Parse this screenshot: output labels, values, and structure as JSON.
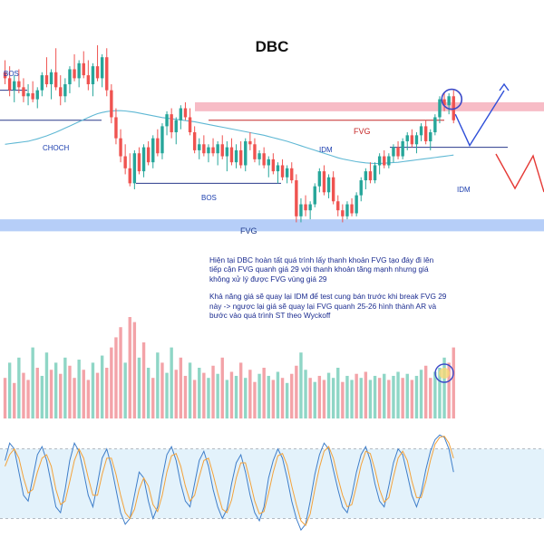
{
  "title": "DBC",
  "labels": {
    "bos_left": "BOS",
    "choch": "CHOCH",
    "bos_mid": "BOS",
    "idm_mid": "IDM",
    "idm_right": "IDM",
    "fvg_top": "FVG",
    "fvg_bottom": "FVG"
  },
  "annotation": {
    "para1": "Hiện tại DBC hoàn tất quá trình lấy thanh khoản FVG tạo đáy đi lên tiếp cận FVG quanh giá 29 với thanh khoản tăng mạnh nhưng giá không xử lý được FVG vùng giá 29",
    "para2": "Khả năng giá sẽ quay lại IDM để test cung bán trước khi break FVG 29 này -> ngược lại giá sẽ quay lại FVG quanh 25-26 hình thành AR và bước vào quá trình ST theo Wyckoff"
  },
  "colors": {
    "up": "#26a69a",
    "down": "#ef5350",
    "fvg_top_zone": "#f4a5b3",
    "fvg_bottom_zone": "#a9c6f7",
    "ma_line": "#5fb8d4",
    "label_blue": "#1e40af",
    "projection_blue": "#2f4fd8",
    "projection_red": "#e53935",
    "highlight_circle": "#3b49c8",
    "stoch_band": "#e3f2fb",
    "stoch_k": "#3f7ec9",
    "stoch_d": "#f3a23a"
  },
  "chart_data": [
    {
      "type": "candlestick",
      "title": "DBC",
      "y_range": [
        24.5,
        31.2
      ],
      "candles": [
        {
          "o": 30.0,
          "h": 30.4,
          "l": 29.6,
          "c": 29.8
        },
        {
          "o": 29.8,
          "h": 30.2,
          "l": 29.2,
          "c": 29.4
        },
        {
          "o": 29.4,
          "h": 29.9,
          "l": 29.0,
          "c": 29.7
        },
        {
          "o": 29.7,
          "h": 30.1,
          "l": 29.3,
          "c": 29.5
        },
        {
          "o": 29.5,
          "h": 29.8,
          "l": 29.0,
          "c": 29.2
        },
        {
          "o": 29.2,
          "h": 29.6,
          "l": 28.9,
          "c": 29.3
        },
        {
          "o": 29.3,
          "h": 29.7,
          "l": 29.0,
          "c": 29.1
        },
        {
          "o": 29.1,
          "h": 29.5,
          "l": 28.8,
          "c": 29.4
        },
        {
          "o": 29.4,
          "h": 30.0,
          "l": 29.2,
          "c": 29.9
        },
        {
          "o": 29.9,
          "h": 30.5,
          "l": 29.5,
          "c": 29.6
        },
        {
          "o": 29.6,
          "h": 30.1,
          "l": 29.1,
          "c": 30.0
        },
        {
          "o": 30.0,
          "h": 30.8,
          "l": 29.4,
          "c": 29.5
        },
        {
          "o": 29.5,
          "h": 29.9,
          "l": 28.9,
          "c": 29.2
        },
        {
          "o": 29.2,
          "h": 29.8,
          "l": 29.0,
          "c": 29.6
        },
        {
          "o": 29.6,
          "h": 30.2,
          "l": 29.3,
          "c": 30.1
        },
        {
          "o": 30.1,
          "h": 30.6,
          "l": 29.7,
          "c": 29.8
        },
        {
          "o": 29.8,
          "h": 30.4,
          "l": 29.5,
          "c": 30.3
        },
        {
          "o": 30.3,
          "h": 30.7,
          "l": 29.8,
          "c": 29.9
        },
        {
          "o": 29.9,
          "h": 30.4,
          "l": 29.4,
          "c": 29.6
        },
        {
          "o": 29.6,
          "h": 30.3,
          "l": 29.2,
          "c": 30.2
        },
        {
          "o": 30.2,
          "h": 30.9,
          "l": 29.7,
          "c": 29.8
        },
        {
          "o": 29.8,
          "h": 30.6,
          "l": 29.5,
          "c": 30.5
        },
        {
          "o": 30.5,
          "h": 30.8,
          "l": 29.2,
          "c": 29.4
        },
        {
          "o": 29.4,
          "h": 29.6,
          "l": 28.3,
          "c": 28.5
        },
        {
          "o": 28.5,
          "h": 28.8,
          "l": 27.6,
          "c": 27.8
        },
        {
          "o": 27.8,
          "h": 28.1,
          "l": 27.0,
          "c": 27.2
        },
        {
          "o": 27.2,
          "h": 27.6,
          "l": 26.6,
          "c": 26.8
        },
        {
          "o": 26.8,
          "h": 27.3,
          "l": 26.2,
          "c": 26.3
        },
        {
          "o": 26.3,
          "h": 27.4,
          "l": 26.1,
          "c": 27.3
        },
        {
          "o": 27.3,
          "h": 27.5,
          "l": 26.6,
          "c": 26.7
        },
        {
          "o": 26.7,
          "h": 27.6,
          "l": 26.5,
          "c": 27.5
        },
        {
          "o": 27.5,
          "h": 27.7,
          "l": 26.9,
          "c": 27.0
        },
        {
          "o": 27.0,
          "h": 27.9,
          "l": 26.8,
          "c": 27.8
        },
        {
          "o": 27.8,
          "h": 28.1,
          "l": 27.2,
          "c": 27.3
        },
        {
          "o": 27.3,
          "h": 28.3,
          "l": 27.1,
          "c": 28.2
        },
        {
          "o": 28.2,
          "h": 28.7,
          "l": 27.9,
          "c": 28.6
        },
        {
          "o": 28.6,
          "h": 28.8,
          "l": 27.8,
          "c": 28.0
        },
        {
          "o": 28.0,
          "h": 28.5,
          "l": 27.6,
          "c": 28.4
        },
        {
          "o": 28.4,
          "h": 28.9,
          "l": 28.1,
          "c": 28.8
        },
        {
          "o": 28.8,
          "h": 29.0,
          "l": 28.4,
          "c": 28.5
        },
        {
          "o": 28.5,
          "h": 28.8,
          "l": 27.9,
          "c": 28.0
        },
        {
          "o": 28.0,
          "h": 28.2,
          "l": 27.3,
          "c": 27.4
        },
        {
          "o": 27.4,
          "h": 27.8,
          "l": 27.1,
          "c": 27.6
        },
        {
          "o": 27.6,
          "h": 27.9,
          "l": 27.2,
          "c": 27.3
        },
        {
          "o": 27.3,
          "h": 27.6,
          "l": 27.0,
          "c": 27.5
        },
        {
          "o": 27.5,
          "h": 27.8,
          "l": 27.2,
          "c": 27.3
        },
        {
          "o": 27.3,
          "h": 27.7,
          "l": 26.9,
          "c": 27.6
        },
        {
          "o": 27.6,
          "h": 27.9,
          "l": 27.1,
          "c": 27.2
        },
        {
          "o": 27.2,
          "h": 27.7,
          "l": 26.7,
          "c": 27.5
        },
        {
          "o": 27.5,
          "h": 27.8,
          "l": 26.9,
          "c": 27.0
        },
        {
          "o": 27.0,
          "h": 27.6,
          "l": 26.8,
          "c": 27.4
        },
        {
          "o": 27.4,
          "h": 27.7,
          "l": 26.8,
          "c": 26.9
        },
        {
          "o": 26.9,
          "h": 27.8,
          "l": 26.7,
          "c": 27.7
        },
        {
          "o": 27.7,
          "h": 28.0,
          "l": 27.4,
          "c": 27.6
        },
        {
          "o": 27.6,
          "h": 27.8,
          "l": 27.0,
          "c": 27.1
        },
        {
          "o": 27.1,
          "h": 27.4,
          "l": 26.9,
          "c": 27.3
        },
        {
          "o": 27.3,
          "h": 27.5,
          "l": 26.8,
          "c": 26.9
        },
        {
          "o": 26.9,
          "h": 27.2,
          "l": 26.5,
          "c": 27.1
        },
        {
          "o": 27.1,
          "h": 27.3,
          "l": 26.6,
          "c": 26.7
        },
        {
          "o": 26.7,
          "h": 27.0,
          "l": 26.3,
          "c": 26.9
        },
        {
          "o": 26.9,
          "h": 27.1,
          "l": 26.4,
          "c": 26.5
        },
        {
          "o": 26.5,
          "h": 26.9,
          "l": 26.3,
          "c": 26.8
        },
        {
          "o": 26.8,
          "h": 27.0,
          "l": 26.3,
          "c": 26.4
        },
        {
          "o": 26.4,
          "h": 26.6,
          "l": 25.0,
          "c": 25.2
        },
        {
          "o": 25.2,
          "h": 25.8,
          "l": 25.0,
          "c": 25.6
        },
        {
          "o": 25.6,
          "h": 25.9,
          "l": 25.2,
          "c": 25.4
        },
        {
          "o": 25.4,
          "h": 25.7,
          "l": 25.1,
          "c": 25.6
        },
        {
          "o": 25.6,
          "h": 26.3,
          "l": 25.5,
          "c": 26.2
        },
        {
          "o": 26.2,
          "h": 26.8,
          "l": 26.0,
          "c": 26.7
        },
        {
          "o": 26.7,
          "h": 26.9,
          "l": 25.9,
          "c": 26.0
        },
        {
          "o": 26.0,
          "h": 26.6,
          "l": 25.8,
          "c": 26.5
        },
        {
          "o": 26.5,
          "h": 26.7,
          "l": 25.6,
          "c": 25.7
        },
        {
          "o": 25.7,
          "h": 25.9,
          "l": 25.2,
          "c": 25.4
        },
        {
          "o": 25.4,
          "h": 25.6,
          "l": 25.0,
          "c": 25.2
        },
        {
          "o": 25.2,
          "h": 25.7,
          "l": 25.1,
          "c": 25.6
        },
        {
          "o": 25.6,
          "h": 25.8,
          "l": 25.2,
          "c": 25.3
        },
        {
          "o": 25.3,
          "h": 26.0,
          "l": 25.2,
          "c": 25.9
        },
        {
          "o": 25.9,
          "h": 26.5,
          "l": 25.7,
          "c": 26.4
        },
        {
          "o": 26.4,
          "h": 26.8,
          "l": 26.1,
          "c": 26.7
        },
        {
          "o": 26.7,
          "h": 27.0,
          "l": 26.3,
          "c": 26.4
        },
        {
          "o": 26.4,
          "h": 27.0,
          "l": 26.3,
          "c": 26.9
        },
        {
          "o": 26.9,
          "h": 27.3,
          "l": 26.6,
          "c": 27.2
        },
        {
          "o": 27.2,
          "h": 27.4,
          "l": 26.8,
          "c": 26.9
        },
        {
          "o": 26.9,
          "h": 27.3,
          "l": 26.8,
          "c": 27.2
        },
        {
          "o": 27.2,
          "h": 27.6,
          "l": 27.0,
          "c": 27.5
        },
        {
          "o": 27.5,
          "h": 27.7,
          "l": 27.1,
          "c": 27.2
        },
        {
          "o": 27.2,
          "h": 27.8,
          "l": 27.1,
          "c": 27.7
        },
        {
          "o": 27.7,
          "h": 28.0,
          "l": 27.4,
          "c": 27.9
        },
        {
          "o": 27.9,
          "h": 28.1,
          "l": 27.5,
          "c": 27.6
        },
        {
          "o": 27.6,
          "h": 28.0,
          "l": 27.3,
          "c": 27.9
        },
        {
          "o": 27.9,
          "h": 28.3,
          "l": 27.7,
          "c": 28.2
        },
        {
          "o": 28.2,
          "h": 28.4,
          "l": 27.6,
          "c": 27.7
        },
        {
          "o": 27.7,
          "h": 28.1,
          "l": 27.4,
          "c": 28.0
        },
        {
          "o": 28.0,
          "h": 28.6,
          "l": 27.9,
          "c": 28.5
        },
        {
          "o": 28.5,
          "h": 29.2,
          "l": 28.3,
          "c": 29.1
        },
        {
          "o": 29.1,
          "h": 29.3,
          "l": 28.7,
          "c": 28.9
        },
        {
          "o": 28.9,
          "h": 29.3,
          "l": 28.6,
          "c": 29.2
        },
        {
          "o": 29.2,
          "h": 29.4,
          "l": 28.3,
          "c": 28.4
        }
      ],
      "moving_average": [
        27.6,
        27.62,
        27.64,
        27.66,
        27.68,
        27.7,
        27.74,
        27.78,
        27.83,
        27.88,
        27.94,
        28.0,
        28.07,
        28.14,
        28.21,
        28.28,
        28.35,
        28.42,
        28.49,
        28.56,
        28.62,
        28.66,
        28.69,
        28.71,
        28.72,
        28.72,
        28.71,
        28.69,
        28.67,
        28.64,
        28.61,
        28.58,
        28.55,
        28.52,
        28.49,
        28.47,
        28.45,
        28.43,
        28.41,
        28.39,
        28.37,
        28.35,
        28.32,
        28.29,
        28.26,
        28.23,
        28.2,
        28.17,
        28.14,
        28.11,
        28.08,
        28.05,
        28.02,
        27.99,
        27.96,
        27.93,
        27.9,
        27.86,
        27.82,
        27.78,
        27.74,
        27.7,
        27.65,
        27.6,
        27.55,
        27.5,
        27.45,
        27.4,
        27.35,
        27.3,
        27.25,
        27.2,
        27.15,
        27.11,
        27.08,
        27.05,
        27.02,
        27.0,
        26.98,
        26.97,
        26.96,
        26.96,
        26.97,
        26.98,
        26.99,
        27.0,
        27.02,
        27.04,
        27.06,
        27.08,
        27.1,
        27.12,
        27.14,
        27.16,
        27.18,
        27.2,
        27.22,
        27.24
      ],
      "levels": [
        {
          "label": "BOS",
          "price": 29.4
        },
        {
          "label": "CHOCH",
          "price": 28.4
        },
        {
          "label": "BOS",
          "price": 26.3
        },
        {
          "label": "IDM",
          "price": 28.4
        },
        {
          "label": "IDM",
          "price": 27.5
        }
      ],
      "zones": [
        {
          "label": "FVG",
          "from": 28.7,
          "to": 29.0
        },
        {
          "label": "FVG",
          "from": 24.7,
          "to": 25.1
        }
      ]
    },
    {
      "type": "bar",
      "title": "Volume",
      "values": [
        40,
        55,
        35,
        60,
        45,
        38,
        70,
        50,
        42,
        65,
        48,
        55,
        44,
        60,
        52,
        40,
        58,
        48,
        38,
        55,
        45,
        62,
        50,
        70,
        80,
        90,
        55,
        100,
        95,
        60,
        75,
        50,
        40,
        65,
        55,
        45,
        70,
        48,
        60,
        42,
        55,
        38,
        50,
        45,
        40,
        52,
        44,
        60,
        38,
        46,
        42,
        55,
        40,
        48,
        36,
        44,
        50,
        42,
        38,
        46,
        40,
        35,
        44,
        52,
        65,
        48,
        40,
        36,
        42,
        38,
        45,
        40,
        50,
        36,
        42,
        38,
        44,
        40,
        46,
        38,
        42,
        40,
        44,
        38,
        42,
        46,
        40,
        44,
        38,
        42,
        48,
        52,
        40,
        46,
        50,
        60,
        55,
        70
      ],
      "directions": [
        "down",
        "up",
        "down",
        "up",
        "down",
        "down",
        "up",
        "down",
        "up",
        "up",
        "down",
        "up",
        "down",
        "up",
        "down",
        "down",
        "up",
        "down",
        "down",
        "up",
        "down",
        "up",
        "down",
        "down",
        "down",
        "down",
        "up",
        "down",
        "down",
        "up",
        "down",
        "up",
        "down",
        "up",
        "down",
        "up",
        "up",
        "down",
        "down",
        "down",
        "up",
        "down",
        "up",
        "down",
        "up",
        "down",
        "up",
        "down",
        "up",
        "down",
        "up",
        "down",
        "up",
        "down",
        "down",
        "up",
        "down",
        "up",
        "down",
        "up",
        "down",
        "up",
        "down",
        "down",
        "up",
        "up",
        "down",
        "up",
        "down",
        "down",
        "up",
        "up",
        "up",
        "down",
        "up",
        "up",
        "down",
        "up",
        "down",
        "up",
        "up",
        "down",
        "up",
        "down",
        "up",
        "up",
        "down",
        "up",
        "down",
        "up",
        "up",
        "down",
        "down",
        "up",
        "up",
        "up",
        "down",
        "down"
      ]
    },
    {
      "type": "line",
      "title": "Stochastic",
      "ylim": [
        0,
        100
      ],
      "band": [
        20,
        80
      ],
      "series": [
        {
          "values": [
            70,
            85,
            80,
            60,
            40,
            35,
            55,
            75,
            82,
            70,
            50,
            30,
            25,
            45,
            70,
            85,
            78,
            60,
            40,
            30,
            50,
            72,
            80,
            65,
            45,
            25,
            15,
            20,
            40,
            60,
            55,
            35,
            20,
            30,
            55,
            75,
            82,
            70,
            50,
            35,
            30,
            50,
            70,
            78,
            65,
            45,
            30,
            20,
            28,
            50,
            68,
            75,
            60,
            40,
            25,
            18,
            30,
            55,
            70,
            80,
            72,
            55,
            35,
            20,
            10,
            15,
            35,
            58,
            75,
            85,
            80,
            62,
            45,
            30,
            25,
            40,
            60,
            75,
            82,
            70,
            50,
            35,
            30,
            48,
            68,
            80,
            75,
            58,
            40,
            30,
            42,
            62,
            78,
            88,
            92,
            90,
            80,
            60
          ]
        },
        {
          "values": [
            65,
            75,
            80,
            72,
            55,
            42,
            45,
            60,
            72,
            75,
            65,
            45,
            32,
            35,
            52,
            70,
            80,
            72,
            55,
            40,
            40,
            58,
            72,
            72,
            58,
            40,
            25,
            20,
            28,
            45,
            55,
            48,
            32,
            26,
            40,
            60,
            74,
            76,
            65,
            48,
            35,
            40,
            56,
            70,
            72,
            58,
            42,
            28,
            25,
            36,
            55,
            68,
            68,
            52,
            35,
            24,
            26,
            42,
            60,
            74,
            76,
            66,
            48,
            32,
            18,
            14,
            24,
            45,
            64,
            78,
            82,
            72,
            55,
            40,
            30,
            32,
            48,
            66,
            78,
            76,
            62,
            45,
            34,
            38,
            56,
            72,
            78,
            70,
            52,
            38,
            38,
            52,
            70,
            84,
            90,
            91,
            85,
            72
          ]
        }
      ]
    }
  ]
}
